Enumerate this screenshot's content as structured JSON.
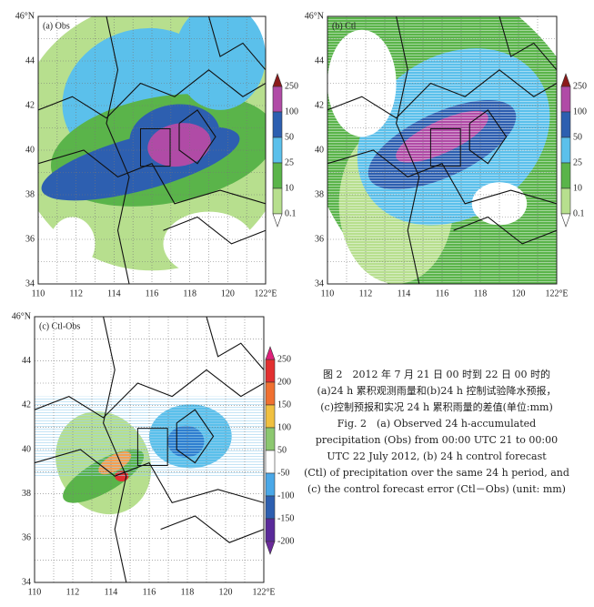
{
  "panels": [
    {
      "label": "(a) Obs",
      "lat_labels": [
        "46°N",
        "44",
        "42",
        "40",
        "38",
        "36",
        "34"
      ],
      "lon_labels": [
        "110",
        "112",
        "114",
        "116",
        "118",
        "120",
        "122°E"
      ],
      "colorbar": [
        "250",
        "100",
        "50",
        "25",
        "10",
        "0.1"
      ]
    },
    {
      "label": "(b) Ctl",
      "lat_labels": [
        "46°N",
        "44",
        "42",
        "40",
        "38",
        "36",
        "34"
      ],
      "lon_labels": [
        "110",
        "112",
        "114",
        "116",
        "118",
        "120",
        "122°E"
      ],
      "colorbar": [
        "250",
        "100",
        "50",
        "25",
        "10",
        "0.1"
      ]
    },
    {
      "label": "(c) Ctl-Obs",
      "lat_labels": [
        "46°N",
        "44",
        "42",
        "40",
        "38",
        "36",
        "34"
      ],
      "lon_labels": [
        "110",
        "112",
        "114",
        "116",
        "118",
        "120",
        "122°E"
      ],
      "colorbar": [
        "250",
        "200",
        "150",
        "100",
        "50",
        "-50",
        "-100",
        "-150",
        "-200"
      ]
    }
  ],
  "caption": {
    "zh": [
      "图 2　2012 年 7 月 21 日 00 时到 22 日 00 时的",
      "(a)24 h 累积观测雨量和(b)24 h 控制试验降水预报，",
      "(c)控制预报和实况 24 h 累积雨量的差值(单位:mm)"
    ],
    "en": [
      "Fig. 2　(a) Observed 24 h-accumulated",
      "precipitation (Obs) from 00:00 UTC 21 to 00:00",
      "UTC 22 July 2012, (b) 24 h control forecast",
      "(Ctl) of precipitation over the same 24 h period, and",
      "(c) the control forecast error (Ctl－Obs) (unit: mm)"
    ]
  }
}
